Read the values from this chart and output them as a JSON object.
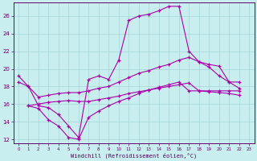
{
  "xlabel": "Windchill (Refroidissement éolien,°C)",
  "background_color": "#c8eef0",
  "line_color": "#aa00aa",
  "grid_color": "#a0cece",
  "xlim": [
    -0.5,
    23.5
  ],
  "ylim": [
    11.5,
    27.5
  ],
  "yticks": [
    12,
    14,
    16,
    18,
    20,
    22,
    24,
    26
  ],
  "xticks": [
    0,
    1,
    2,
    3,
    4,
    5,
    6,
    7,
    8,
    9,
    10,
    11,
    12,
    13,
    14,
    15,
    16,
    17,
    18,
    19,
    20,
    21,
    22,
    23
  ],
  "line1_x": [
    0,
    1,
    2,
    3,
    4,
    5,
    6,
    7,
    8,
    9,
    10,
    11,
    12,
    13,
    14,
    15,
    16,
    17,
    18,
    19,
    20,
    21,
    22
  ],
  "line1_y": [
    19.2,
    18.0,
    15.8,
    15.6,
    14.8,
    13.5,
    12.2,
    18.8,
    19.2,
    18.8,
    21.0,
    25.5,
    26.0,
    26.2,
    26.6,
    27.1,
    27.1,
    22.0,
    20.8,
    20.5,
    20.3,
    18.5,
    18.5
  ],
  "line2_x": [
    0,
    1,
    2,
    3,
    4,
    5,
    6,
    7,
    8,
    9,
    10,
    11,
    12,
    13,
    14,
    15,
    16,
    17,
    18,
    19,
    20,
    21,
    22
  ],
  "line2_y": [
    18.5,
    18.0,
    16.8,
    17.0,
    17.2,
    17.3,
    17.3,
    17.5,
    17.8,
    18.0,
    18.5,
    19.0,
    19.5,
    19.8,
    20.2,
    20.5,
    21.0,
    21.3,
    20.8,
    20.2,
    19.2,
    18.5,
    17.8
  ],
  "line3_x": [
    1,
    2,
    3,
    4,
    5,
    6,
    7,
    8,
    9,
    10,
    11,
    12,
    13,
    14,
    15,
    16,
    17,
    18,
    19,
    20,
    21,
    22
  ],
  "line3_y": [
    15.8,
    16.0,
    16.2,
    16.3,
    16.4,
    16.3,
    16.3,
    16.5,
    16.7,
    16.9,
    17.2,
    17.4,
    17.6,
    17.8,
    18.0,
    18.2,
    18.4,
    17.5,
    17.4,
    17.3,
    17.2,
    17.0
  ],
  "line4_x": [
    1,
    2,
    3,
    4,
    5,
    6,
    7,
    8,
    9,
    10,
    11,
    12,
    13,
    14,
    15,
    16,
    17,
    18,
    19,
    20,
    21,
    22
  ],
  "line4_y": [
    15.8,
    15.5,
    14.2,
    13.5,
    12.2,
    12.0,
    14.5,
    15.2,
    15.8,
    16.3,
    16.7,
    17.2,
    17.6,
    17.9,
    18.2,
    18.5,
    17.5,
    17.5,
    17.5,
    17.5,
    17.5,
    17.5
  ]
}
